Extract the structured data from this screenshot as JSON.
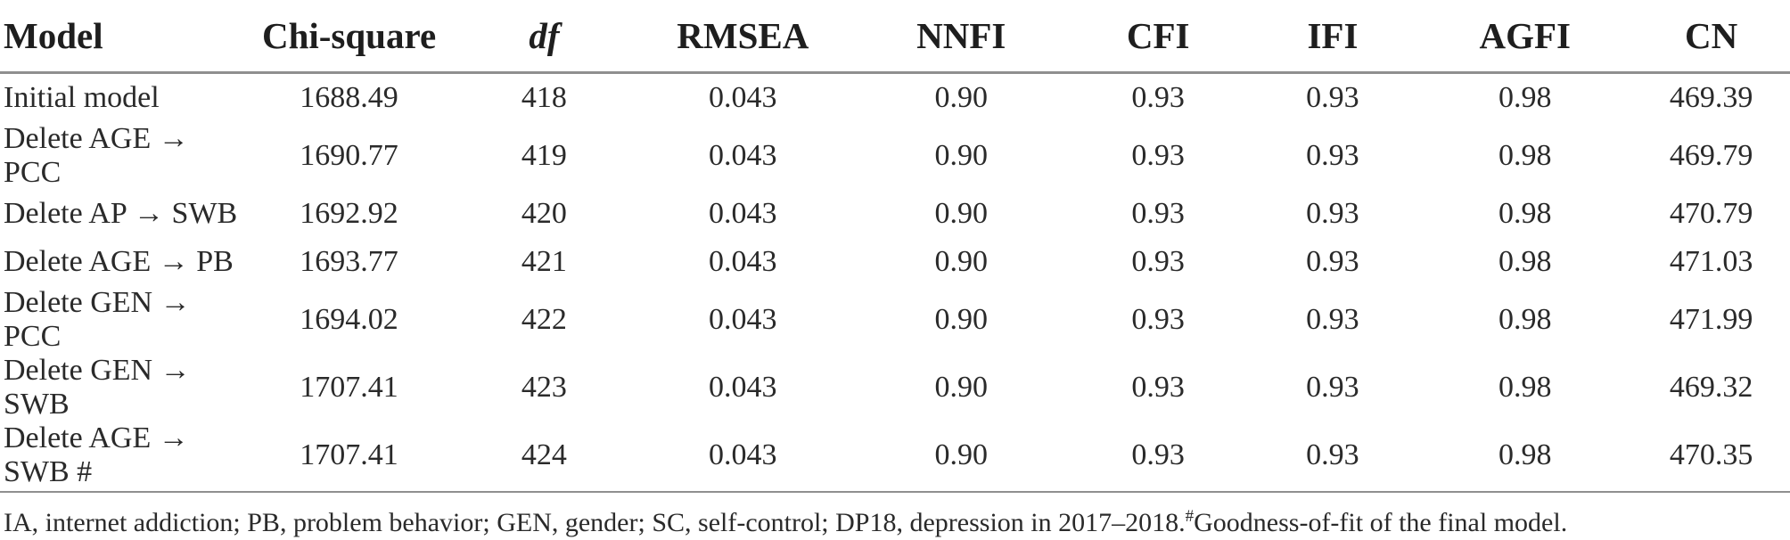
{
  "table": {
    "columns": [
      {
        "key": "model",
        "label": "Model"
      },
      {
        "key": "chi_square",
        "label": "Chi-square"
      },
      {
        "key": "df",
        "label": "df"
      },
      {
        "key": "rmsea",
        "label": "RMSEA"
      },
      {
        "key": "nnfi",
        "label": "NNFI"
      },
      {
        "key": "cfi",
        "label": "CFI"
      },
      {
        "key": "ifi",
        "label": "IFI"
      },
      {
        "key": "agfi",
        "label": "AGFI"
      },
      {
        "key": "cn",
        "label": "CN"
      }
    ],
    "rows": [
      [
        "Initial model",
        "1688.49",
        "418",
        "0.043",
        "0.90",
        "0.93",
        "0.93",
        "0.98",
        "469.39"
      ],
      [
        "Delete AGE → PCC",
        "1690.77",
        "419",
        "0.043",
        "0.90",
        "0.93",
        "0.93",
        "0.98",
        "469.79"
      ],
      [
        "Delete AP → SWB",
        "1692.92",
        "420",
        "0.043",
        "0.90",
        "0.93",
        "0.93",
        "0.98",
        "470.79"
      ],
      [
        "Delete AGE → PB",
        "1693.77",
        "421",
        "0.043",
        "0.90",
        "0.93",
        "0.93",
        "0.98",
        "471.03"
      ],
      [
        "Delete GEN → PCC",
        "1694.02",
        "422",
        "0.043",
        "0.90",
        "0.93",
        "0.93",
        "0.98",
        "471.99"
      ],
      [
        "Delete GEN → SWB",
        "1707.41",
        "423",
        "0.043",
        "0.90",
        "0.93",
        "0.93",
        "0.98",
        "469.32"
      ],
      [
        "Delete AGE → SWB #",
        "1707.41",
        "424",
        "0.043",
        "0.90",
        "0.93",
        "0.93",
        "0.98",
        "470.35"
      ]
    ]
  },
  "footnote": {
    "abbreviations": "IA, internet addiction; PB, problem behavior; GEN, gender; SC, self-control; DP18, depression in 2017–2018.",
    "marker": "#",
    "note": "Goodness-of-fit of the final model."
  },
  "colors": {
    "background": "#ffffff",
    "text": "#2a2a2a",
    "rule": "#8f8f8f"
  }
}
